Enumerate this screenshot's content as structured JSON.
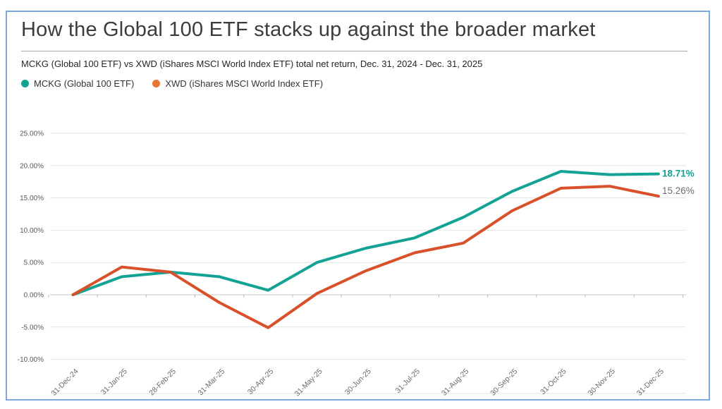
{
  "card": {
    "title": "How the Global 100 ETF stacks up against the broader market",
    "subtitle": "MCKG (Global 100 ETF) vs XWD (iShares MSCI World Index ETF) total net return, Dec. 31, 2024 - Dec. 31, 2025"
  },
  "legend": {
    "items": [
      {
        "label": "MCKG (Global 100 ETF)",
        "color": "#14a294"
      },
      {
        "label": "XWD (iShares MSCI World Index ETF)",
        "color": "#ea7431"
      }
    ]
  },
  "colors": {
    "frame_border": "#7fa8db",
    "grid_line": "#e3e3e3",
    "zero_line": "#c7c7c7",
    "tick_mark": "#bdbdbd",
    "axis_text": "#595959",
    "x_label_text": "#6a6a6a",
    "end_label_gray": "#6f6f6f"
  },
  "chart_data": {
    "type": "line",
    "title": "How the Global 100 ETF stacks up against the broader market",
    "subtitle": "MCKG (Global 100 ETF) vs XWD (iShares MSCI World Index ETF) total net return, Dec. 31, 2024 - Dec. 31, 2025",
    "categories": [
      "31-Dec-24",
      "31-Jan-25",
      "28-Feb-25",
      "31-Mar-25",
      "30-Apr-25",
      "31-May-25",
      "30-Jun-25",
      "31-Jul-25",
      "31-Aug-25",
      "30-Sep-25",
      "31-Oct-25",
      "30-Nov-25",
      "31-Dec-25"
    ],
    "series": [
      {
        "name": "MCKG (Global 100 ETF)",
        "color": "#14a294",
        "values": [
          0.0,
          2.8,
          3.5,
          2.8,
          0.7,
          5.0,
          7.2,
          8.8,
          12.0,
          16.0,
          19.1,
          18.6,
          18.71
        ],
        "end_label": "18.71%",
        "end_label_color": "#14a294",
        "end_label_bold": true
      },
      {
        "name": "XWD (iShares MSCI World Index ETF)",
        "color": "#d8512b",
        "values": [
          0.0,
          4.3,
          3.5,
          -1.2,
          -5.1,
          0.2,
          3.7,
          6.5,
          8.0,
          13.0,
          16.5,
          16.8,
          15.26
        ],
        "end_label": "15.26%",
        "end_label_color": "#6f6f6f",
        "end_label_bold": false
      }
    ],
    "ylim": [
      -10,
      25
    ],
    "y_ticks": [
      {
        "value": 25,
        "label": "25.00%"
      },
      {
        "value": 20,
        "label": "20.00%"
      },
      {
        "value": 15,
        "label": "15.00%"
      },
      {
        "value": 10,
        "label": "10.00%"
      },
      {
        "value": 5,
        "label": "5.00%"
      },
      {
        "value": 0,
        "label": "0.00%"
      },
      {
        "value": -5,
        "label": "-5.00%"
      },
      {
        "value": -10,
        "label": "-10.00%"
      }
    ],
    "grid": true,
    "legend_position": "top-left",
    "xlabel": "",
    "ylabel": ""
  }
}
